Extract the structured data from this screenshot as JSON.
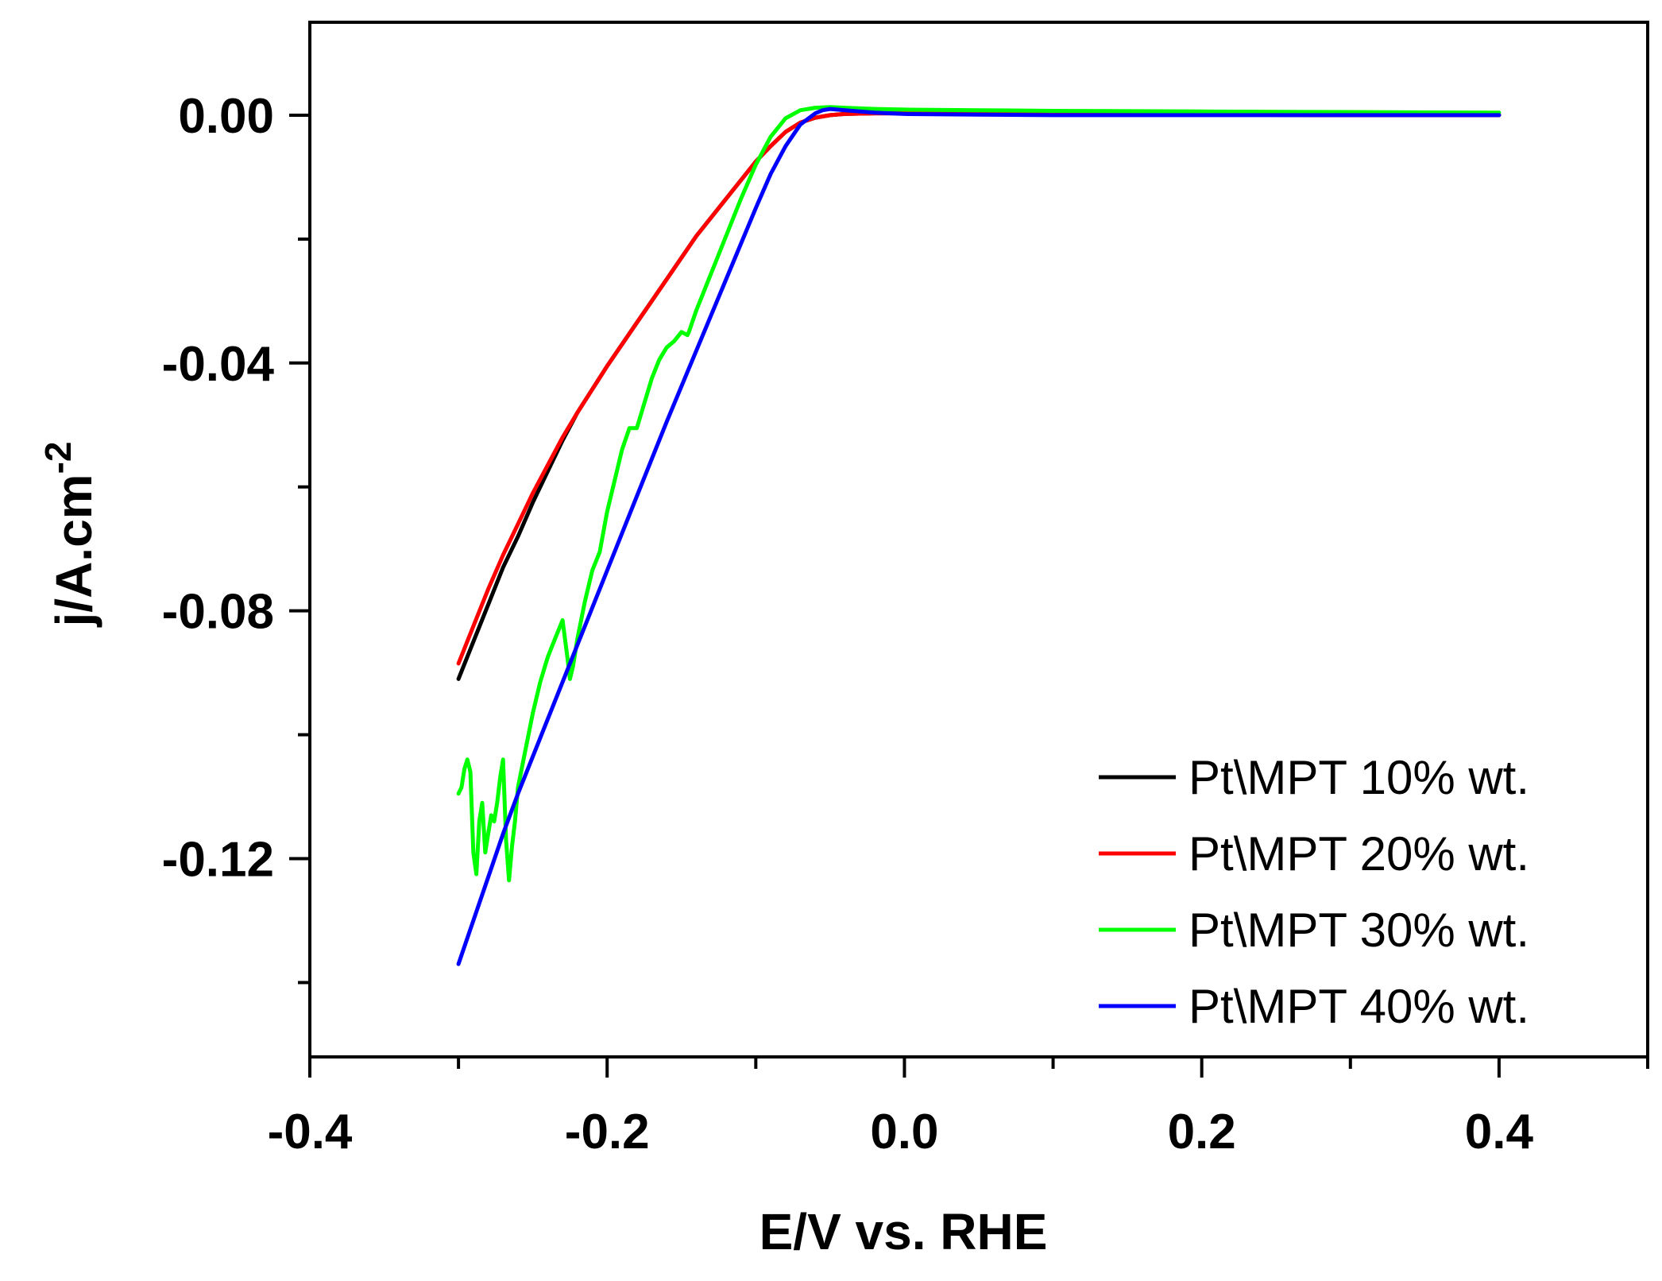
{
  "chart_data": {
    "type": "line",
    "title": "",
    "xlabel": "E/V vs. RHE",
    "ylabel": "j/A.cm",
    "ylabel_superscript": "-2",
    "xlim": [
      -0.4,
      0.5
    ],
    "ylim": [
      -0.152,
      0.015
    ],
    "xticks": [
      -0.4,
      -0.3,
      -0.2,
      -0.1,
      0.0,
      0.1,
      0.2,
      0.3,
      0.4,
      0.5
    ],
    "xtick_labels": [
      "-0.4",
      "-0.2",
      "0.0",
      "0.2",
      "0.4"
    ],
    "xtick_label_values": [
      -0.4,
      -0.2,
      0.0,
      0.2,
      0.4
    ],
    "yticks": [
      0.0,
      -0.02,
      -0.04,
      -0.06,
      -0.08,
      -0.1,
      -0.12,
      -0.14
    ],
    "ytick_labels": [
      "0.00",
      "-0.04",
      "-0.08",
      "-0.12"
    ],
    "ytick_label_values": [
      0.0,
      -0.04,
      -0.08,
      -0.12
    ],
    "grid": false,
    "legend_position": "bottom-right",
    "series": [
      {
        "name": "Pt\\MPT 10% wt.",
        "color": "#000000",
        "x": [
          -0.3,
          -0.29,
          -0.28,
          -0.27,
          -0.26,
          -0.25,
          -0.24,
          -0.23,
          -0.22,
          -0.2,
          -0.18,
          -0.16,
          -0.14,
          -0.12,
          -0.1,
          -0.09,
          -0.08,
          -0.07,
          -0.06,
          -0.05,
          -0.04,
          -0.02,
          0.0,
          0.05,
          0.1,
          0.2,
          0.3,
          0.4
        ],
        "y": [
          -0.091,
          -0.085,
          -0.079,
          -0.073,
          -0.068,
          -0.0625,
          -0.0575,
          -0.0525,
          -0.048,
          -0.0405,
          -0.0335,
          -0.0265,
          -0.0195,
          -0.0135,
          -0.0075,
          -0.005,
          -0.0027,
          -0.0012,
          -0.0004,
          0.0,
          0.0002,
          0.0003,
          0.0003,
          0.0003,
          0.0002,
          0.0001,
          0.0,
          0.0
        ]
      },
      {
        "name": "Pt\\MPT 20% wt.",
        "color": "#ff0000",
        "x": [
          -0.3,
          -0.29,
          -0.28,
          -0.27,
          -0.26,
          -0.25,
          -0.24,
          -0.23,
          -0.22,
          -0.2,
          -0.18,
          -0.16,
          -0.14,
          -0.12,
          -0.1,
          -0.09,
          -0.08,
          -0.07,
          -0.06,
          -0.05,
          -0.04,
          -0.02,
          0.0,
          0.05,
          0.1,
          0.2,
          0.3,
          0.4
        ],
        "y": [
          -0.0885,
          -0.0825,
          -0.0765,
          -0.071,
          -0.066,
          -0.061,
          -0.0565,
          -0.052,
          -0.048,
          -0.0405,
          -0.0335,
          -0.0265,
          -0.0195,
          -0.0135,
          -0.0075,
          -0.005,
          -0.0027,
          -0.0012,
          -0.0004,
          0.0,
          0.0002,
          0.0003,
          0.0003,
          0.0003,
          0.0002,
          0.0001,
          0.0,
          0.0
        ]
      },
      {
        "name": "Pt\\MPT 30% wt.",
        "color": "#00ff00",
        "x": [
          -0.3,
          -0.298,
          -0.296,
          -0.294,
          -0.292,
          -0.29,
          -0.288,
          -0.286,
          -0.284,
          -0.282,
          -0.28,
          -0.278,
          -0.276,
          -0.274,
          -0.272,
          -0.27,
          -0.268,
          -0.266,
          -0.264,
          -0.262,
          -0.26,
          -0.255,
          -0.25,
          -0.245,
          -0.24,
          -0.235,
          -0.23,
          -0.227,
          -0.225,
          -0.223,
          -0.22,
          -0.215,
          -0.21,
          -0.205,
          -0.2,
          -0.195,
          -0.19,
          -0.185,
          -0.18,
          -0.175,
          -0.17,
          -0.165,
          -0.16,
          -0.155,
          -0.15,
          -0.146,
          -0.145,
          -0.14,
          -0.13,
          -0.12,
          -0.11,
          -0.1,
          -0.09,
          -0.08,
          -0.07,
          -0.06,
          -0.05,
          -0.04,
          -0.03,
          -0.02,
          0.0,
          0.05,
          0.1,
          0.2,
          0.3,
          0.4
        ],
        "y": [
          -0.1095,
          -0.1085,
          -0.1055,
          -0.104,
          -0.106,
          -0.119,
          -0.1225,
          -0.114,
          -0.111,
          -0.119,
          -0.116,
          -0.113,
          -0.114,
          -0.111,
          -0.107,
          -0.104,
          -0.117,
          -0.1235,
          -0.118,
          -0.114,
          -0.1085,
          -0.1025,
          -0.0965,
          -0.0915,
          -0.0875,
          -0.0845,
          -0.0815,
          -0.087,
          -0.091,
          -0.089,
          -0.0845,
          -0.0785,
          -0.0735,
          -0.0705,
          -0.064,
          -0.059,
          -0.054,
          -0.0505,
          -0.0505,
          -0.0465,
          -0.0425,
          -0.0395,
          -0.0375,
          -0.0365,
          -0.035,
          -0.0355,
          -0.035,
          -0.0315,
          -0.0255,
          -0.0195,
          -0.0135,
          -0.008,
          -0.0035,
          -0.0005,
          0.0008,
          0.0012,
          0.0013,
          0.0012,
          0.0011,
          0.001,
          0.0009,
          0.0008,
          0.0007,
          0.0006,
          0.0005,
          0.0004
        ]
      },
      {
        "name": "Pt\\MPT 40% wt.",
        "color": "#0000ff",
        "x": [
          -0.3,
          -0.29,
          -0.28,
          -0.27,
          -0.26,
          -0.25,
          -0.24,
          -0.23,
          -0.22,
          -0.2,
          -0.18,
          -0.16,
          -0.14,
          -0.12,
          -0.1,
          -0.09,
          -0.08,
          -0.07,
          -0.06,
          -0.055,
          -0.05,
          -0.04,
          -0.03,
          -0.02,
          0.0,
          0.05,
          0.1,
          0.2,
          0.3,
          0.4
        ],
        "y": [
          -0.137,
          -0.13,
          -0.123,
          -0.116,
          -0.1095,
          -0.1035,
          -0.0975,
          -0.0915,
          -0.0855,
          -0.0735,
          -0.0615,
          -0.0495,
          -0.038,
          -0.0265,
          -0.015,
          -0.0095,
          -0.005,
          -0.0015,
          0.0003,
          0.0008,
          0.001,
          0.0008,
          0.0006,
          0.0004,
          0.0002,
          0.0001,
          0.0,
          0.0,
          0.0,
          0.0
        ]
      }
    ]
  }
}
